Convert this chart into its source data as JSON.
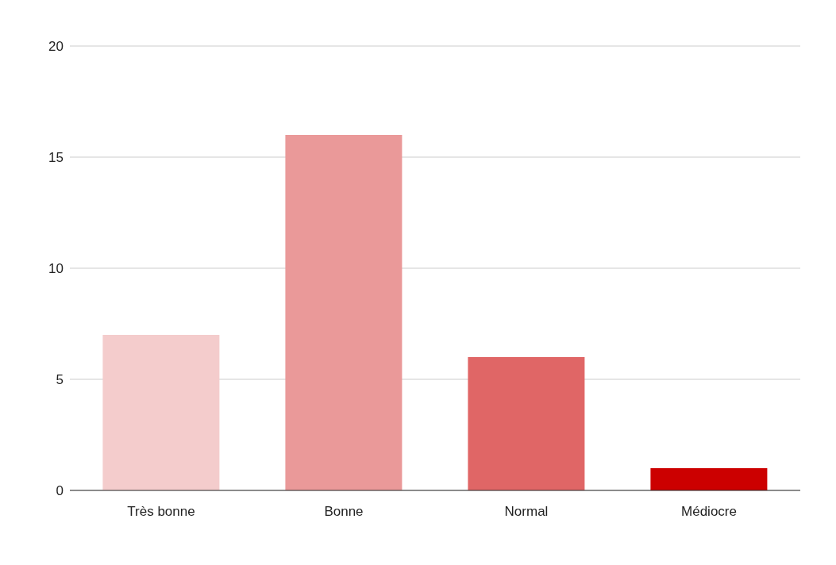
{
  "chart_data": {
    "type": "bar",
    "categories": [
      "Très bonne",
      "Bonne",
      "Normal",
      "Médiocre"
    ],
    "values": [
      7,
      16,
      6,
      1
    ],
    "colors": [
      "#f4cccc",
      "#ea9999",
      "#e06666",
      "#cc0000"
    ],
    "ylim": [
      0,
      20
    ],
    "yticks": [
      0,
      5,
      10,
      15,
      20
    ],
    "grid": "y"
  }
}
